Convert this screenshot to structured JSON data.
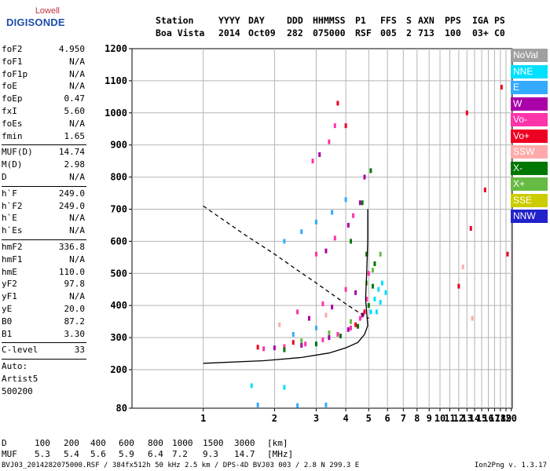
{
  "logo": {
    "line1": "Lowell",
    "line2": "DIGISONDE"
  },
  "header": {
    "row1": [
      "Station",
      "YYYY",
      "DAY",
      "DDD",
      "HHMMSS",
      "P1",
      "FFS",
      "S",
      "AXN",
      "PPS",
      "IGA",
      "PS"
    ],
    "row2": [
      "Boa Vista",
      "2014",
      "Oct09",
      "282",
      "075000",
      "RSF",
      "005",
      "2",
      "713",
      "100",
      "03+",
      "C0"
    ]
  },
  "params": {
    "group1": [
      {
        "name": "foF2",
        "value": "4.950"
      },
      {
        "name": "foF1",
        "value": "N/A"
      },
      {
        "name": "foF1p",
        "value": "N/A"
      },
      {
        "name": "foE",
        "value": "N/A"
      },
      {
        "name": "foEp",
        "value": "0.47"
      },
      {
        "name": "fxI",
        "value": "5.60"
      },
      {
        "name": "foEs",
        "value": "N/A"
      },
      {
        "name": "fmin",
        "value": "1.65"
      }
    ],
    "group2": [
      {
        "name": "MUF(D)",
        "value": "14.74"
      },
      {
        "name": "M(D)",
        "value": "2.98"
      },
      {
        "name": "D",
        "value": "N/A"
      }
    ],
    "group3": [
      {
        "name": "h`F",
        "value": "249.0"
      },
      {
        "name": "h`F2",
        "value": "249.0"
      },
      {
        "name": "h`E",
        "value": "N/A"
      },
      {
        "name": "h`Es",
        "value": "N/A"
      }
    ],
    "group4": [
      {
        "name": "hmF2",
        "value": "336.8"
      },
      {
        "name": "hmF1",
        "value": "N/A"
      },
      {
        "name": "hmE",
        "value": "110.0"
      },
      {
        "name": "yF2",
        "value": "97.8"
      },
      {
        "name": "yF1",
        "value": "N/A"
      },
      {
        "name": "yE",
        "value": "20.0"
      },
      {
        "name": "B0",
        "value": "87.2"
      },
      {
        "name": "B1",
        "value": "3.30"
      }
    ],
    "group5": [
      {
        "name": "C-level",
        "value": "33"
      }
    ],
    "group6": [
      {
        "name": "Auto:",
        "value": ""
      },
      {
        "name": "Artist5",
        "value": ""
      },
      {
        "name": "500200",
        "value": ""
      }
    ]
  },
  "legend": [
    {
      "label": "NoVal",
      "color": "#a0a0a0"
    },
    {
      "label": "NNE",
      "color": "#00e0ff"
    },
    {
      "label": "E",
      "color": "#33aaff"
    },
    {
      "label": "W",
      "color": "#aa00aa"
    },
    {
      "label": "Vo-",
      "color": "#ff33aa"
    },
    {
      "label": "Vo+",
      "color": "#ee0022"
    },
    {
      "label": "SSW",
      "color": "#ffaaaa"
    },
    {
      "label": "X-",
      "color": "#007700"
    },
    {
      "label": "X+",
      "color": "#66bb44"
    },
    {
      "label": "SSE",
      "color": "#cccc00"
    },
    {
      "label": "NNW",
      "color": "#2222cc"
    }
  ],
  "footer": {
    "d_row": [
      "D",
      "100",
      "200",
      "400",
      "600",
      "800",
      "1000",
      "1500",
      "3000",
      "[km]"
    ],
    "muf_row": [
      "MUF",
      "5.3",
      "5.4",
      "5.6",
      "5.9",
      "6.4",
      "7.2",
      "9.3",
      "14.7",
      "[MHz]"
    ],
    "source": "BVJ03_2014282075000.RSF / 384fx512h 50 kHz 2.5 km / DPS-4D BVJ03 003 / 2.8 N 299.3 E",
    "version": "Ion2Png v. 1.3.17"
  },
  "chart_data": {
    "type": "scatter",
    "title": "",
    "xlabel": "",
    "ylabel": "",
    "xlim": [
      0.5,
      20.2
    ],
    "ylim": [
      80,
      1200
    ],
    "x_ticks": [
      "1",
      "2",
      "3",
      "4",
      "5",
      "6",
      "7",
      "8",
      "9",
      "10",
      "11",
      "12",
      "13",
      "14",
      "15",
      "16",
      "17",
      "18",
      "19",
      "20"
    ],
    "y_ticks": [
      "80",
      "200",
      "300",
      "400",
      "500",
      "600",
      "700",
      "800",
      "900",
      "1000",
      "1100",
      "1200"
    ],
    "grid": true,
    "x_scale": "log",
    "series": [
      {
        "name": "Vo-",
        "color": "#ff33aa",
        "points": [
          [
            1.8,
            265
          ],
          [
            2.2,
            272
          ],
          [
            2.7,
            280
          ],
          [
            3.2,
            293
          ],
          [
            3.7,
            310
          ],
          [
            4.2,
            330
          ],
          [
            4.6,
            360
          ],
          [
            4.9,
            420
          ],
          [
            5.0,
            500
          ],
          [
            2.5,
            380
          ],
          [
            3.2,
            405
          ],
          [
            4.0,
            450
          ],
          [
            3.0,
            560
          ],
          [
            3.6,
            610
          ],
          [
            4.3,
            680
          ],
          [
            2.9,
            850
          ],
          [
            3.4,
            910
          ],
          [
            3.6,
            960
          ]
        ]
      },
      {
        "name": "W",
        "color": "#aa00aa",
        "points": [
          [
            2.0,
            268
          ],
          [
            2.6,
            276
          ],
          [
            3.4,
            300
          ],
          [
            4.1,
            325
          ],
          [
            4.7,
            370
          ],
          [
            2.8,
            360
          ],
          [
            3.5,
            395
          ],
          [
            4.4,
            440
          ],
          [
            3.3,
            570
          ],
          [
            4.1,
            650
          ],
          [
            4.6,
            720
          ],
          [
            4.8,
            800
          ],
          [
            3.1,
            870
          ]
        ]
      },
      {
        "name": "X-",
        "color": "#007700",
        "points": [
          [
            2.2,
            262
          ],
          [
            3.0,
            280
          ],
          [
            3.8,
            305
          ],
          [
            4.5,
            335
          ],
          [
            5.0,
            400
          ],
          [
            5.2,
            460
          ],
          [
            5.3,
            530
          ],
          [
            4.9,
            560
          ],
          [
            4.2,
            600
          ],
          [
            4.7,
            720
          ],
          [
            5.1,
            820
          ]
        ]
      },
      {
        "name": "NNE",
        "color": "#00e0ff",
        "points": [
          [
            5.1,
            380
          ],
          [
            5.3,
            420
          ],
          [
            5.5,
            450
          ],
          [
            5.7,
            470
          ],
          [
            5.9,
            440
          ],
          [
            5.4,
            380
          ],
          [
            5.6,
            410
          ],
          [
            1.6,
            150
          ],
          [
            2.2,
            145
          ]
        ]
      },
      {
        "name": "E",
        "color": "#33aaff",
        "points": [
          [
            2.2,
            600
          ],
          [
            2.6,
            630
          ],
          [
            3.0,
            660
          ],
          [
            3.5,
            690
          ],
          [
            4.0,
            730
          ],
          [
            2.4,
            310
          ],
          [
            3.0,
            330
          ],
          [
            1.7,
            90
          ],
          [
            2.5,
            88
          ],
          [
            3.3,
            90
          ]
        ]
      },
      {
        "name": "Vo+",
        "color": "#ee0022",
        "points": [
          [
            1.7,
            270
          ],
          [
            2.4,
            285
          ],
          [
            4.4,
            340
          ],
          [
            4.8,
            380
          ],
          [
            3.7,
            1030
          ],
          [
            4.0,
            960
          ],
          [
            13.0,
            1000
          ],
          [
            13.5,
            640
          ],
          [
            15.5,
            760
          ],
          [
            18.2,
            1080
          ],
          [
            12.0,
            460
          ],
          [
            19.3,
            560
          ]
        ]
      },
      {
        "name": "X+",
        "color": "#66bb44",
        "points": [
          [
            2.6,
            290
          ],
          [
            3.4,
            315
          ],
          [
            4.2,
            350
          ],
          [
            4.9,
            470
          ],
          [
            5.2,
            510
          ],
          [
            5.6,
            560
          ]
        ]
      },
      {
        "name": "SSW",
        "color": "#ffaaaa",
        "points": [
          [
            2.1,
            340
          ],
          [
            3.3,
            370
          ],
          [
            12.5,
            520
          ],
          [
            13.7,
            360
          ]
        ]
      }
    ],
    "lines": [
      {
        "name": "virtual-height-dashed",
        "style": "dashed",
        "points": [
          [
            1.0,
            710
          ],
          [
            1.5,
            620
          ],
          [
            2.0,
            560
          ],
          [
            2.5,
            510
          ],
          [
            3.0,
            470
          ],
          [
            3.5,
            435
          ],
          [
            4.0,
            405
          ],
          [
            4.5,
            380
          ],
          [
            5.0,
            360
          ]
        ]
      },
      {
        "name": "profile-solid",
        "style": "solid",
        "points": [
          [
            1.0,
            220
          ],
          [
            1.8,
            228
          ],
          [
            2.6,
            238
          ],
          [
            3.4,
            252
          ],
          [
            4.0,
            268
          ],
          [
            4.5,
            285
          ],
          [
            4.8,
            310
          ],
          [
            4.95,
            336.8
          ],
          [
            4.9,
            380
          ],
          [
            4.85,
            420
          ],
          [
            4.9,
            500
          ],
          [
            4.95,
            600
          ],
          [
            4.95,
            700
          ]
        ]
      }
    ],
    "colors": {
      "grid": "#b4b4b4",
      "lines": "#000000"
    }
  }
}
